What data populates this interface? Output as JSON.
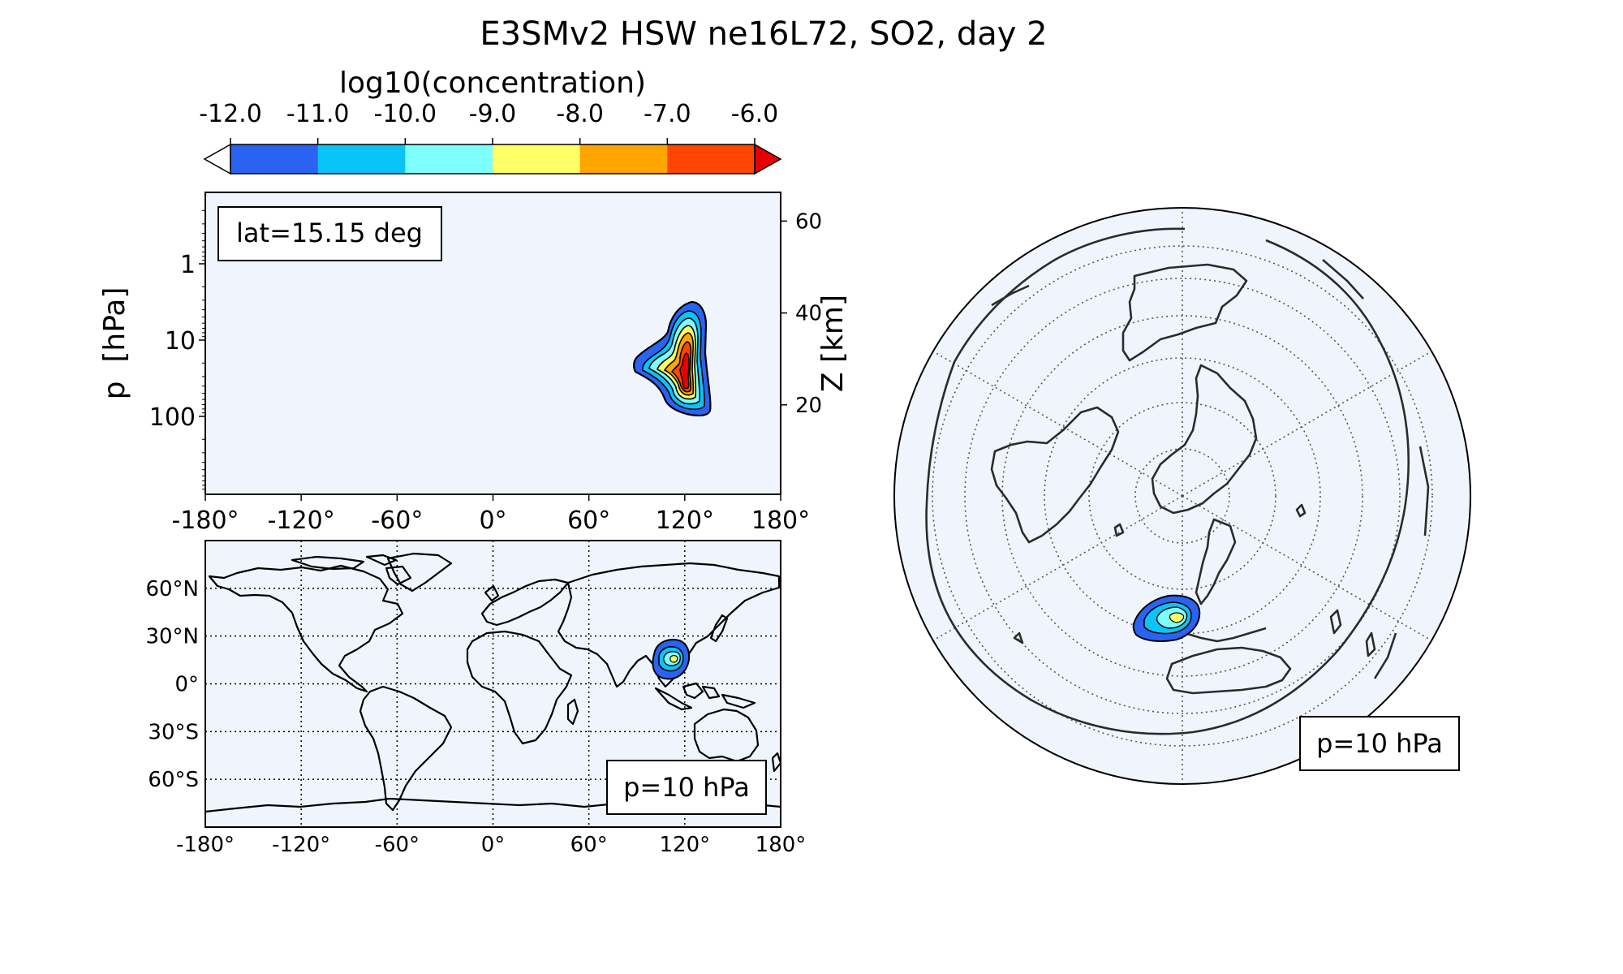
{
  "chart_data": [
    {
      "type": "colorbar",
      "title": "E3SMv2 HSW ne16L72, SO2, day 2",
      "label": "log10(concentration)",
      "levels": [
        -12.0,
        -11.0,
        -10.0,
        -9.0,
        -8.0,
        -7.0,
        -6.0
      ],
      "tick_labels": [
        "-12.0",
        "-11.0",
        "-10.0",
        "-9.0",
        "-8.0",
        "-7.0",
        "-6.0"
      ],
      "colors": [
        "#2a62f2",
        "#0ac3f7",
        "#7effff",
        "#ffff66",
        "#ffa500",
        "#ff4500"
      ],
      "under_color": "#ffffff",
      "over_color": "#e60000",
      "extend": "both"
    },
    {
      "type": "contour",
      "panel": "vertical cross-section",
      "annotation": "lat=15.15 deg",
      "xlabel": "",
      "ylabel": "p  [hPa]",
      "ylabel_right": "Z [km]",
      "xlim": [
        -180,
        180
      ],
      "x_ticks": [
        -180,
        -120,
        -60,
        0,
        60,
        120,
        180
      ],
      "x_tick_labels": [
        "-180°",
        "-120°",
        "-60°",
        "0°",
        "60°",
        "120°",
        "180°"
      ],
      "y_scale": "log",
      "y_inverted": true,
      "y_ticks": [
        1,
        10,
        100
      ],
      "y_tick_labels": [
        "1",
        "10",
        "100"
      ],
      "z_ticks": [
        20,
        40,
        60
      ],
      "z_tick_labels": [
        "20",
        "40",
        "60"
      ],
      "plume": {
        "lon_range": [
          88,
          134
        ],
        "pressure_range_hPa": [
          4.2,
          110
        ],
        "center_lon": 112,
        "center_pressure_hPa": 30,
        "max_log10": -6.0
      },
      "grid": false
    },
    {
      "type": "contour",
      "panel": "lat-lon map",
      "annotation": "p=10 hPa",
      "projection": "equirectangular",
      "xlim": [
        -180,
        180
      ],
      "ylim": [
        -90,
        90
      ],
      "x_tick_labels": [
        "-180°",
        "-120°",
        "-60°",
        "0°",
        "60°",
        "120°",
        "180°"
      ],
      "y_ticks": [
        60,
        30,
        0,
        -30,
        -60
      ],
      "y_tick_labels": [
        "60°N",
        "30°N",
        "0°",
        "30°S",
        "60°S"
      ],
      "plume": {
        "lon_range": [
          100,
          124
        ],
        "lat_range": [
          2,
          29
        ],
        "center_lon": 112,
        "center_lat": 15,
        "max_log10": -9.0
      },
      "grid": true
    },
    {
      "type": "contour",
      "panel": "orthographic globe",
      "annotation": "p=10 hPa",
      "projection": "orthographic",
      "plume": {
        "lon_range": [
          100,
          124
        ],
        "lat_range": [
          5,
          25
        ],
        "max_log10": -9.0
      },
      "grid": true
    }
  ]
}
